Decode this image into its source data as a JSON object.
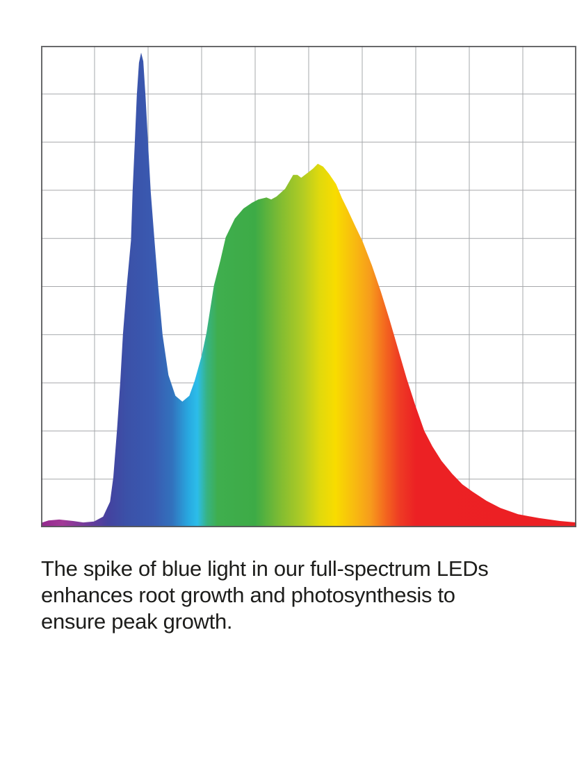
{
  "page": {
    "background_color": "#ffffff"
  },
  "chart_data": {
    "type": "area",
    "title": "",
    "xlabel": "",
    "ylabel": "",
    "axis_tick_labels_visible": false,
    "legend_position": "none",
    "grid": {
      "on": true,
      "cols": 10,
      "rows": 10,
      "color": "#a6a8ab"
    },
    "border_color": "#58595b",
    "xlim_normalized": [
      0,
      1
    ],
    "ylim_normalized": [
      0,
      1
    ],
    "series_name": "full-spectrum-led-relative-intensity",
    "fill_style": "horizontal-spectral-gradient",
    "gradient_stops": [
      [
        0.0,
        "#93278f"
      ],
      [
        0.04,
        "#a23a97"
      ],
      [
        0.09,
        "#6b3b9c"
      ],
      [
        0.125,
        "#44429f"
      ],
      [
        0.16,
        "#3b51a8"
      ],
      [
        0.21,
        "#3a5ab1"
      ],
      [
        0.245,
        "#3272bd"
      ],
      [
        0.275,
        "#28a8e0"
      ],
      [
        0.292,
        "#2cbde9"
      ],
      [
        0.31,
        "#37b383"
      ],
      [
        0.33,
        "#3fae4e"
      ],
      [
        0.4,
        "#3dab46"
      ],
      [
        0.45,
        "#84bd31"
      ],
      [
        0.49,
        "#b3cc23"
      ],
      [
        0.52,
        "#e0d90d"
      ],
      [
        0.55,
        "#f8dc00"
      ],
      [
        0.585,
        "#f8bb10"
      ],
      [
        0.615,
        "#f79c1c"
      ],
      [
        0.645,
        "#f3641f"
      ],
      [
        0.67,
        "#ee3b24"
      ],
      [
        0.7,
        "#ec2124"
      ],
      [
        1.0,
        "#ec2024"
      ]
    ],
    "points": [
      [
        0.0,
        0.009
      ],
      [
        0.014,
        0.014
      ],
      [
        0.034,
        0.016
      ],
      [
        0.06,
        0.013
      ],
      [
        0.079,
        0.01
      ],
      [
        0.099,
        0.012
      ],
      [
        0.116,
        0.022
      ],
      [
        0.129,
        0.053
      ],
      [
        0.135,
        0.104
      ],
      [
        0.142,
        0.202
      ],
      [
        0.148,
        0.302
      ],
      [
        0.153,
        0.4
      ],
      [
        0.16,
        0.499
      ],
      [
        0.168,
        0.596
      ],
      [
        0.171,
        0.697
      ],
      [
        0.175,
        0.796
      ],
      [
        0.179,
        0.898
      ],
      [
        0.183,
        0.965
      ],
      [
        0.187,
        0.986
      ],
      [
        0.191,
        0.968
      ],
      [
        0.195,
        0.898
      ],
      [
        0.2,
        0.796
      ],
      [
        0.205,
        0.697
      ],
      [
        0.212,
        0.596
      ],
      [
        0.219,
        0.499
      ],
      [
        0.227,
        0.4
      ],
      [
        0.238,
        0.316
      ],
      [
        0.251,
        0.273
      ],
      [
        0.264,
        0.261
      ],
      [
        0.277,
        0.273
      ],
      [
        0.287,
        0.304
      ],
      [
        0.3,
        0.356
      ],
      [
        0.309,
        0.403
      ],
      [
        0.323,
        0.502
      ],
      [
        0.335,
        0.554
      ],
      [
        0.345,
        0.602
      ],
      [
        0.362,
        0.641
      ],
      [
        0.378,
        0.662
      ],
      [
        0.394,
        0.674
      ],
      [
        0.406,
        0.681
      ],
      [
        0.421,
        0.685
      ],
      [
        0.43,
        0.681
      ],
      [
        0.44,
        0.687
      ],
      [
        0.456,
        0.703
      ],
      [
        0.471,
        0.732
      ],
      [
        0.479,
        0.732
      ],
      [
        0.486,
        0.726
      ],
      [
        0.499,
        0.737
      ],
      [
        0.508,
        0.745
      ],
      [
        0.517,
        0.755
      ],
      [
        0.527,
        0.749
      ],
      [
        0.538,
        0.734
      ],
      [
        0.551,
        0.713
      ],
      [
        0.562,
        0.684
      ],
      [
        0.573,
        0.659
      ],
      [
        0.588,
        0.623
      ],
      [
        0.601,
        0.593
      ],
      [
        0.618,
        0.544
      ],
      [
        0.635,
        0.489
      ],
      [
        0.651,
        0.431
      ],
      [
        0.666,
        0.374
      ],
      [
        0.683,
        0.309
      ],
      [
        0.699,
        0.254
      ],
      [
        0.716,
        0.2
      ],
      [
        0.731,
        0.168
      ],
      [
        0.748,
        0.138
      ],
      [
        0.768,
        0.111
      ],
      [
        0.787,
        0.089
      ],
      [
        0.806,
        0.074
      ],
      [
        0.832,
        0.055
      ],
      [
        0.858,
        0.04
      ],
      [
        0.891,
        0.027
      ],
      [
        0.93,
        0.019
      ],
      [
        0.969,
        0.013
      ],
      [
        1.0,
        0.01
      ]
    ]
  },
  "caption": {
    "text": "The spike of blue light in our full-spectrum LEDs enhances root growth and photosynthesis to ensure peak growth.",
    "lines": [
      "The spike of blue light in our full-spectrum LEDs",
      "enhances root growth and photosynthesis to",
      "ensure peak growth."
    ],
    "color": "#1d1d1b"
  }
}
